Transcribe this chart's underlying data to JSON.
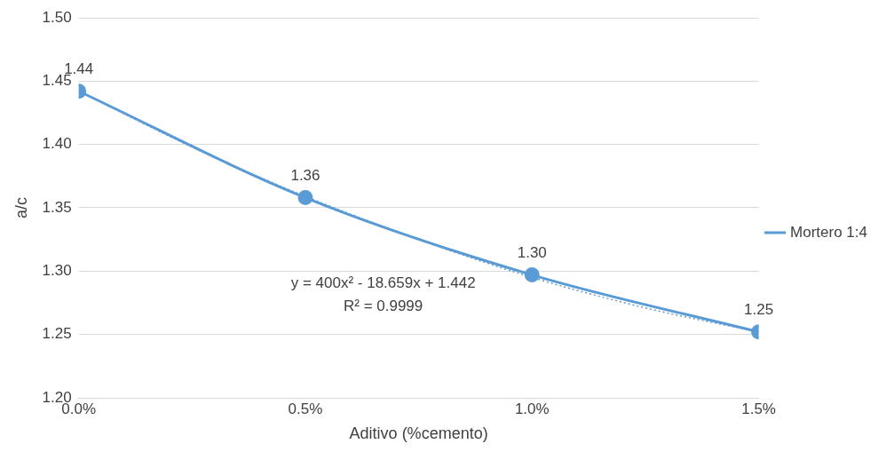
{
  "chart_data": {
    "type": "line",
    "xlabel": "Aditivo (%cemento)",
    "ylabel": "a/c",
    "x": [
      0,
      0.005,
      0.01,
      0.015
    ],
    "series": [
      {
        "name": "Mortero 1:4",
        "color": "#5b9bd5",
        "values": [
          1.442,
          1.358,
          1.297,
          1.252
        ],
        "marker": "circle",
        "value_labels": [
          "1.44",
          "1.36",
          "1.30",
          "1.25"
        ]
      },
      {
        "type": "line",
        "color": "#5b9bd5",
        "line_style": "dotted",
        "marker": "none",
        "x": [
          0,
          0.0025,
          0.005,
          0.0075,
          0.01,
          0.0125,
          0.015
        ],
        "values": [
          1.442,
          1.398,
          1.359,
          1.325,
          1.295,
          1.271,
          1.252
        ]
      }
    ],
    "xlim": [
      0,
      0.015
    ],
    "xticks": [
      {
        "value": 0,
        "label": "0.0%"
      },
      {
        "value": 0.005,
        "label": "0.5%"
      },
      {
        "value": 0.01,
        "label": "1.0%"
      },
      {
        "value": 0.015,
        "label": "1.5%"
      }
    ],
    "ylim": [
      1.2,
      1.5
    ],
    "yticks": [
      {
        "value": 1.2,
        "label": "1.20"
      },
      {
        "value": 1.25,
        "label": "1.25"
      },
      {
        "value": 1.3,
        "label": "1.30"
      },
      {
        "value": 1.35,
        "label": "1.35"
      },
      {
        "value": 1.4,
        "label": "1.40"
      },
      {
        "value": 1.45,
        "label": "1.45"
      },
      {
        "value": 1.5,
        "label": "1.50"
      }
    ],
    "grid": "y",
    "legend": "right",
    "annotations": [
      "y = 400x² - 18.659x + 1.442",
      "R² = 0.9999"
    ]
  }
}
